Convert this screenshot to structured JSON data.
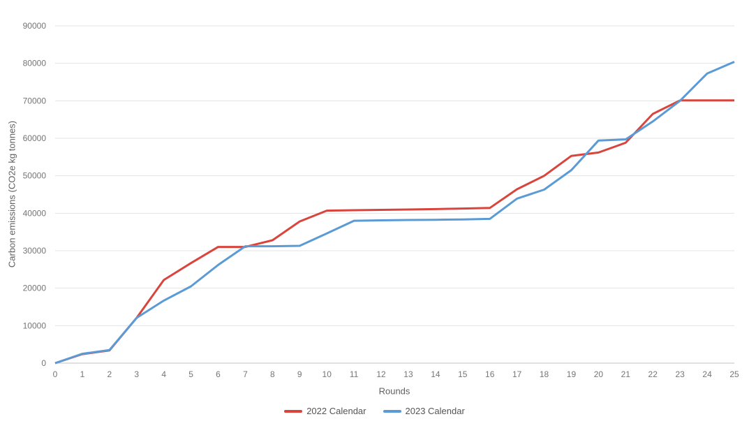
{
  "chart_data": {
    "type": "line",
    "title": "",
    "xlabel": "Rounds",
    "ylabel": "Carbon emissions (CO2e kg tonnes)",
    "x": [
      0,
      1,
      2,
      3,
      4,
      5,
      6,
      7,
      8,
      9,
      10,
      11,
      12,
      13,
      14,
      15,
      16,
      17,
      18,
      19,
      20,
      21,
      22,
      23,
      24,
      25
    ],
    "series": [
      {
        "name": "2022 Calendar",
        "color": "#d9453d",
        "values": [
          0,
          2400,
          3400,
          12100,
          22200,
          26700,
          31000,
          31000,
          32800,
          37800,
          40700,
          40800,
          40900,
          41000,
          41100,
          41250,
          41400,
          46400,
          50000,
          55300,
          56200,
          58800,
          66500,
          70100,
          70100,
          70100
        ]
      },
      {
        "name": "2023 Calendar",
        "color": "#5b9bd5",
        "values": [
          0,
          2500,
          3500,
          12100,
          16700,
          20500,
          26200,
          31200,
          31200,
          31300,
          34600,
          38000,
          38100,
          38200,
          38250,
          38350,
          38500,
          43900,
          46300,
          51500,
          59400,
          59700,
          64500,
          70000,
          77300,
          80400
        ]
      }
    ],
    "ylim": [
      0,
      90000
    ],
    "ytick_step": 10000,
    "grid": "horizontal",
    "legend_position": "bottom"
  },
  "colors": {
    "background": "#ffffff",
    "gridline": "#e3e3e3",
    "baseline": "#c2c2c2",
    "tick_label": "#757575",
    "axis_title": "#616161",
    "legend_label": "#545454"
  }
}
